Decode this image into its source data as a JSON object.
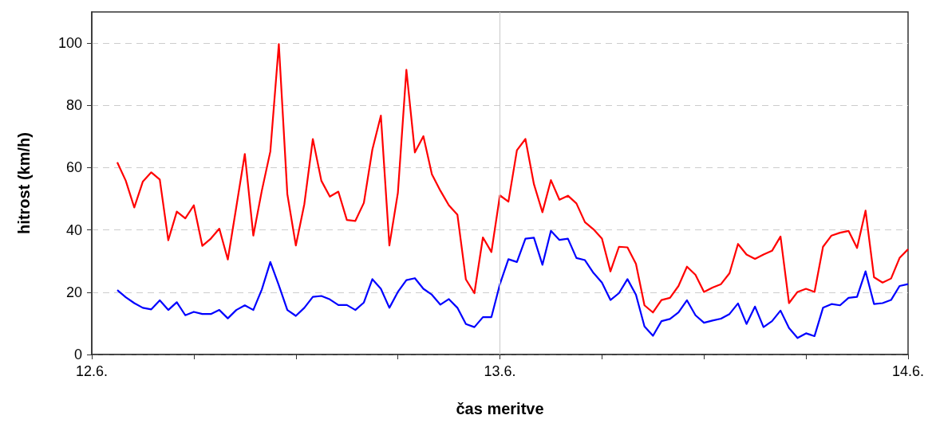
{
  "chart_data": {
    "type": "line",
    "xlabel": "čas meritve",
    "ylabel": "hitrost (km/h)",
    "x": [
      "--06-12T01:30",
      "--06-12T02:00",
      "--06-12T02:30",
      "--06-12T03:00",
      "--06-12T03:30",
      "--06-12T04:00",
      "--06-12T04:30",
      "--06-12T05:00",
      "--06-12T05:30",
      "--06-12T06:00",
      "--06-12T06:30",
      "--06-12T07:00",
      "--06-12T07:30",
      "--06-12T08:00",
      "--06-12T08:30",
      "--06-12T09:00",
      "--06-12T09:30",
      "--06-12T10:00",
      "--06-12T10:30",
      "--06-12T11:00",
      "--06-12T11:30",
      "--06-12T12:00",
      "--06-12T12:30",
      "--06-12T13:00",
      "--06-12T13:30",
      "--06-12T14:00",
      "--06-12T14:30",
      "--06-12T15:00",
      "--06-12T15:30",
      "--06-12T16:00",
      "--06-12T16:30",
      "--06-12T17:00",
      "--06-12T17:30",
      "--06-12T18:00",
      "--06-12T18:30",
      "--06-12T19:00",
      "--06-12T19:30",
      "--06-12T20:00",
      "--06-12T20:30",
      "--06-12T21:00",
      "--06-12T21:30",
      "--06-12T22:00",
      "--06-12T22:30",
      "--06-12T23:00",
      "--06-12T23:30",
      "--06-13T00:00",
      "--06-13T00:30",
      "--06-13T01:00",
      "--06-13T01:30",
      "--06-13T02:00",
      "--06-13T02:30",
      "--06-13T03:00",
      "--06-13T03:30",
      "--06-13T04:00",
      "--06-13T04:30",
      "--06-13T05:00",
      "--06-13T05:30",
      "--06-13T06:00",
      "--06-13T06:30",
      "--06-13T07:00",
      "--06-13T07:30",
      "--06-13T08:00",
      "--06-13T08:30",
      "--06-13T09:00",
      "--06-13T09:30",
      "--06-13T10:00",
      "--06-13T10:30",
      "--06-13T11:00",
      "--06-13T11:30",
      "--06-13T12:00",
      "--06-13T12:30",
      "--06-13T13:00",
      "--06-13T13:30",
      "--06-13T14:00",
      "--06-13T14:30",
      "--06-13T15:00",
      "--06-13T15:30",
      "--06-13T16:00",
      "--06-13T16:30",
      "--06-13T17:00",
      "--06-13T17:30",
      "--06-13T18:00",
      "--06-13T18:30",
      "--06-13T19:00",
      "--06-13T19:30",
      "--06-13T20:00",
      "--06-13T20:30",
      "--06-13T21:00",
      "--06-13T21:30",
      "--06-13T22:00",
      "--06-13T22:30",
      "--06-13T23:00",
      "--06-13T23:30",
      "--06-14T00:00"
    ],
    "series": [
      {
        "color": "#ff0000",
        "values": [
          61.7,
          55.8,
          47.2,
          55.5,
          58.5,
          56.2,
          36.7,
          45.9,
          43.7,
          47.9,
          34.9,
          37.2,
          40.4,
          30.5,
          47.4,
          64.4,
          38.2,
          52.6,
          65.2,
          99.7,
          51.5,
          35.0,
          48.3,
          69.2,
          55.8,
          50.7,
          52.3,
          43.2,
          42.9,
          48.7,
          65.8,
          76.7,
          35.0,
          51.9,
          91.4,
          64.9,
          70.1,
          57.9,
          52.6,
          47.9,
          44.9,
          24.1,
          19.7,
          37.6,
          32.9,
          51.1,
          49.1,
          65.6,
          69.2,
          54.7,
          45.7,
          56.0,
          49.7,
          51.0,
          48.5,
          42.5,
          40.2,
          37.2,
          26.7,
          34.6,
          34.4,
          29.1,
          15.8,
          13.5,
          17.5,
          18.2,
          22.0,
          28.2,
          25.6,
          20.1,
          21.5,
          22.6,
          26.1,
          35.5,
          32.1,
          30.7,
          32.1,
          33.3,
          37.9,
          16.5,
          20.1,
          21.1,
          20.1,
          34.6,
          38.2,
          39.1,
          39.7,
          34.2,
          46.2,
          24.8,
          23.1,
          24.4,
          31.0,
          33.8
        ]
      },
      {
        "color": "#0000ff",
        "values": [
          20.7,
          18.4,
          16.5,
          15.0,
          14.5,
          17.4,
          14.3,
          16.8,
          12.6,
          13.7,
          13.0,
          13.0,
          14.3,
          11.6,
          14.3,
          15.8,
          14.3,
          20.9,
          29.7,
          22.2,
          14.3,
          12.4,
          15.0,
          18.5,
          18.8,
          17.7,
          15.9,
          15.9,
          14.3,
          16.7,
          24.2,
          21.1,
          15.0,
          20.1,
          23.9,
          24.5,
          21.1,
          19.2,
          16.0,
          17.8,
          15.0,
          9.8,
          8.8,
          12.0,
          12.0,
          22.6,
          30.6,
          29.7,
          37.2,
          37.5,
          28.8,
          39.7,
          36.8,
          37.2,
          31.0,
          30.3,
          26.2,
          23.1,
          17.5,
          19.7,
          24.2,
          19.2,
          9.0,
          6.0,
          10.7,
          11.4,
          13.5,
          17.4,
          12.6,
          10.2,
          10.9,
          11.5,
          13.0,
          16.4,
          9.8,
          15.4,
          8.8,
          10.7,
          14.1,
          8.5,
          5.3,
          6.8,
          5.9,
          15.0,
          16.2,
          15.8,
          18.2,
          18.5,
          26.7,
          16.2,
          16.5,
          17.5,
          22.0,
          22.6
        ]
      }
    ],
    "xlim": [
      "--06-12T00:00",
      "--06-14T00:00"
    ],
    "xticks": [
      {
        "value": "--06-12T00:00",
        "label": "12.6."
      },
      {
        "value": "--06-12T06:00",
        "label": null
      },
      {
        "value": "--06-12T12:00",
        "label": null
      },
      {
        "value": "--06-12T18:00",
        "label": null
      },
      {
        "value": "--06-13T00:00",
        "label": "13.6."
      },
      {
        "value": "--06-13T06:00",
        "label": null
      },
      {
        "value": "--06-13T12:00",
        "label": null
      },
      {
        "value": "--06-13T18:00",
        "label": null
      },
      {
        "value": "--06-14T00:00",
        "label": "14.6."
      }
    ],
    "ylim": [
      0,
      110
    ],
    "yticks": [
      0,
      20,
      40,
      60,
      80,
      100
    ],
    "ref_lines": [
      {
        "axis": "x",
        "value": "--06-13T00:00",
        "label": null,
        "color": "#c8c8c8"
      }
    ],
    "grid": "y",
    "marker": "none",
    "line_style": "solid"
  }
}
